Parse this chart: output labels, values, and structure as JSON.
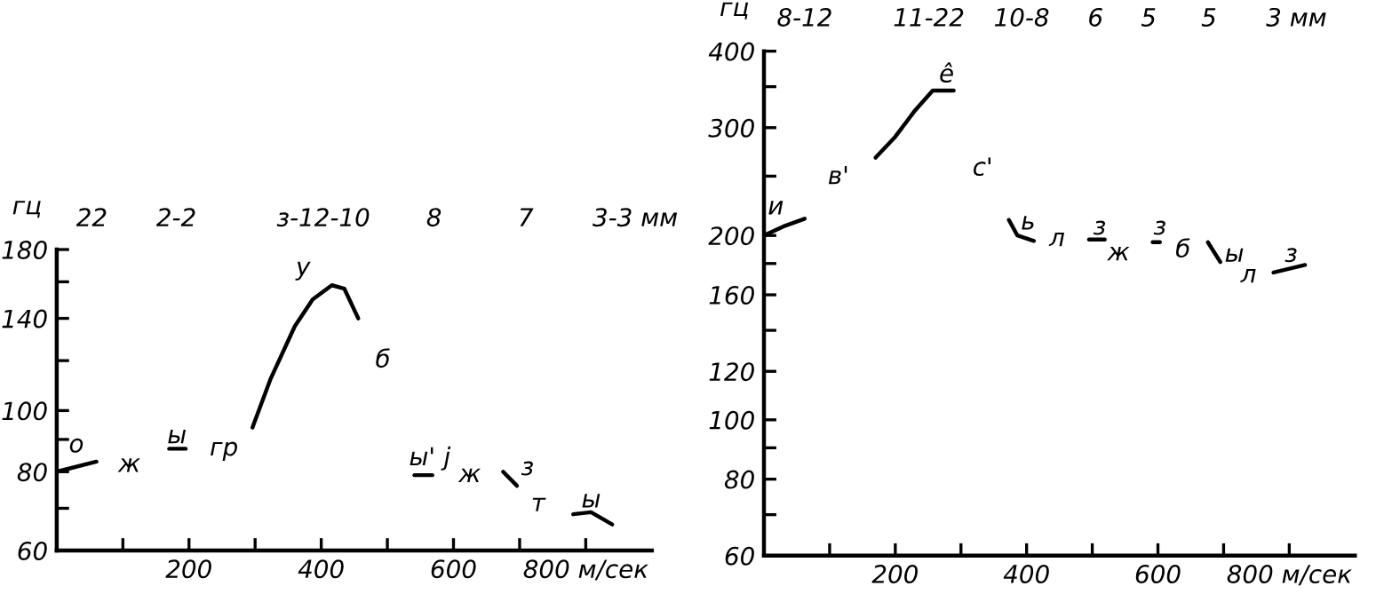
{
  "chart_data": [
    {
      "type": "line",
      "ylabel": "гц",
      "log": "y",
      "grid": false,
      "marker": "none",
      "line_style": "solid",
      "xlim": [
        0,
        900
      ],
      "ylim": [
        60,
        180
      ],
      "xticks": [
        {
          "value": 100,
          "label": null
        },
        200,
        {
          "value": 300,
          "label": null
        },
        400,
        {
          "value": 500,
          "label": null
        },
        600,
        {
          "value": 700,
          "label": null
        },
        {
          "value": 800,
          "label": "800 м/сек"
        }
      ],
      "yticks": [
        60,
        {
          "value": 70,
          "label": null
        },
        80,
        {
          "value": 90,
          "label": null
        },
        100,
        {
          "value": 120,
          "label": null
        },
        140,
        {
          "value": 160,
          "label": null
        },
        180
      ],
      "series": [
        {
          "color": "#000000",
          "x": [
            0,
            60
          ],
          "values": [
            80,
            83
          ]
        },
        {
          "color": "#000000",
          "x": [
            170,
            195
          ],
          "values": [
            87,
            87
          ]
        },
        {
          "color": "#000000",
          "x": [
            296,
            323,
            360,
            387,
            416,
            435,
            456
          ],
          "values": [
            94,
            112,
            136,
            150,
            158,
            156,
            140
          ]
        },
        {
          "color": "#000000",
          "x": [
            541,
            568
          ],
          "values": [
            79,
            79
          ]
        },
        {
          "color": "#000000",
          "x": [
            675,
            696
          ],
          "values": [
            80,
            76
          ]
        },
        {
          "color": "#000000",
          "x": [
            781,
            808,
            840
          ],
          "values": [
            68.5,
            69,
            66
          ]
        }
      ],
      "annotations": [
        "22",
        "2-2",
        "з-12-10",
        "8",
        "7",
        "3-3 мм",
        "о",
        "ж",
        "ы",
        "гр",
        "у",
        "б",
        "ы'",
        "j",
        "ж",
        "з",
        "т",
        "ы"
      ]
    },
    {
      "type": "line",
      "ylabel": "гц",
      "log": "y",
      "grid": false,
      "marker": "none",
      "line_style": "solid",
      "xlim": [
        0,
        900
      ],
      "ylim": [
        60,
        400
      ],
      "xticks": [
        {
          "value": 100,
          "label": null
        },
        200,
        {
          "value": 300,
          "label": null
        },
        400,
        {
          "value": 500,
          "label": null
        },
        600,
        {
          "value": 700,
          "label": null
        },
        {
          "value": 800,
          "label": "800 м/сек"
        }
      ],
      "yticks": [
        60,
        {
          "value": 70,
          "label": null
        },
        80,
        {
          "value": 90,
          "label": null
        },
        100,
        120,
        {
          "value": 140,
          "label": null
        },
        160,
        {
          "value": 180,
          "label": null
        },
        200,
        {
          "value": 250,
          "label": null
        },
        300,
        {
          "value": 350,
          "label": null
        },
        400
      ],
      "series": [
        {
          "color": "#000000",
          "x": [
            0,
            30,
            62
          ],
          "values": [
            200,
            207,
            213
          ]
        },
        {
          "color": "#000000",
          "x": [
            170,
            200,
            230,
            257,
            289
          ],
          "values": [
            268,
            290,
            320,
            345,
            345
          ]
        },
        {
          "color": "#000000",
          "x": [
            373,
            386,
            411
          ],
          "values": [
            212,
            200,
            196
          ]
        },
        {
          "color": "#000000",
          "x": [
            495,
            519
          ],
          "values": [
            197,
            197
          ]
        },
        {
          "color": "#000000",
          "x": [
            592,
            603
          ],
          "values": [
            195,
            195
          ]
        },
        {
          "color": "#000000",
          "x": [
            676,
            695
          ],
          "values": [
            195,
            181
          ]
        },
        {
          "color": "#000000",
          "x": [
            776,
            824
          ],
          "values": [
            174,
            179
          ]
        }
      ],
      "annotations": [
        "8-12",
        "11-22",
        "10-8",
        "6",
        "5",
        "5",
        "3 мм",
        "и",
        "в'",
        "ê",
        "с'",
        "ь",
        "л",
        "з",
        "ж",
        "з",
        "б",
        "ы",
        "л",
        "з"
      ]
    }
  ]
}
